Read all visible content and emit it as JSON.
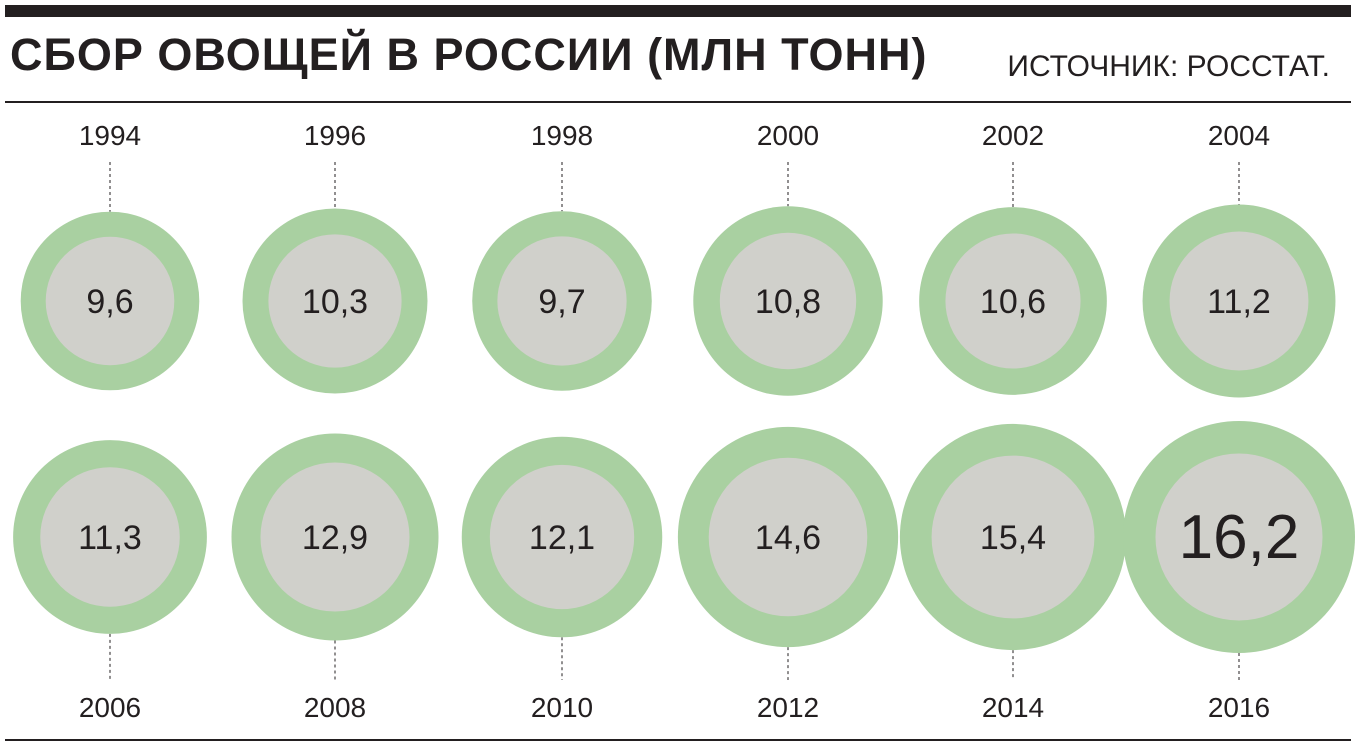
{
  "header": {
    "title": "СБОР ОВОЩЕЙ В РОССИИ (МЛН ТОНН)",
    "source": "ИСТОЧНИК: РОССТАТ."
  },
  "colors": {
    "ring": "#a9d0a1",
    "inner": "#d0d0cb",
    "text": "#231f20",
    "rule": "#231f20"
  },
  "chart_data": {
    "type": "bubble",
    "unit": "млн тонн",
    "points": [
      {
        "year": "1994",
        "value": 9.6,
        "label": "9,6"
      },
      {
        "year": "1996",
        "value": 10.3,
        "label": "10,3"
      },
      {
        "year": "1998",
        "value": 9.7,
        "label": "9,7"
      },
      {
        "year": "2000",
        "value": 10.8,
        "label": "10,8"
      },
      {
        "year": "2002",
        "value": 10.6,
        "label": "10,6"
      },
      {
        "year": "2004",
        "value": 11.2,
        "label": "11,2"
      },
      {
        "year": "2006",
        "value": 11.3,
        "label": "11,3"
      },
      {
        "year": "2008",
        "value": 12.9,
        "label": "12,9"
      },
      {
        "year": "2010",
        "value": 12.1,
        "label": "12,1"
      },
      {
        "year": "2012",
        "value": 14.6,
        "label": "14,6"
      },
      {
        "year": "2014",
        "value": 15.4,
        "label": "15,4"
      },
      {
        "year": "2016",
        "value": 16.2,
        "label": "16,2"
      }
    ]
  }
}
